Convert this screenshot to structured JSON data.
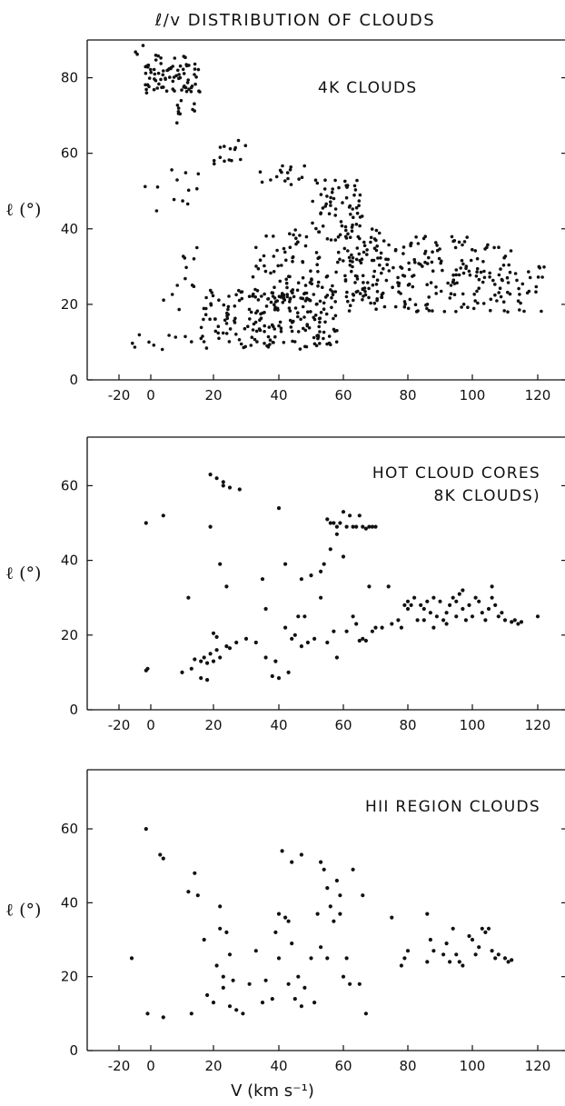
{
  "title": "ℓ/v DISTRIBUTION OF CLOUDS",
  "colors": {
    "ink": "#111111",
    "background": "#ffffff"
  },
  "chart_data": [
    {
      "type": "scatter",
      "label": "4K CLOUDS",
      "ylabel": "ℓ (°)",
      "xlabel": "",
      "xlim": [
        -30,
        130
      ],
      "ylim": [
        0,
        90
      ],
      "xticks": [
        -20,
        0,
        20,
        40,
        60,
        80,
        100,
        120
      ],
      "yticks": [
        0,
        20,
        40,
        60,
        80
      ],
      "grid": false,
      "clusters": [
        {
          "x": [
            -12,
            -2
          ],
          "y": [
            86,
            89
          ],
          "n": 3
        },
        {
          "x": [
            -4,
            16
          ],
          "y": [
            76,
            86
          ],
          "n": 80
        },
        {
          "x": [
            8,
            14
          ],
          "y": [
            68,
            74
          ],
          "n": 10
        },
        {
          "x": [
            20,
            30
          ],
          "y": [
            57,
            64
          ],
          "n": 14
        },
        {
          "x": [
            34,
            48
          ],
          "y": [
            51,
            57
          ],
          "n": 16
        },
        {
          "x": [
            50,
            66
          ],
          "y": [
            40,
            53
          ],
          "n": 55
        },
        {
          "x": [
            -4,
            16
          ],
          "y": [
            44,
            56
          ],
          "n": 12
        },
        {
          "x": [
            4,
            16
          ],
          "y": [
            18,
            36
          ],
          "n": 12
        },
        {
          "x": [
            16,
            58
          ],
          "y": [
            8,
            24
          ],
          "n": 200
        },
        {
          "x": [
            32,
            72
          ],
          "y": [
            20,
            40
          ],
          "n": 130
        },
        {
          "x": [
            60,
            112
          ],
          "y": [
            18,
            38
          ],
          "n": 210
        },
        {
          "x": [
            100,
            122
          ],
          "y": [
            18,
            30
          ],
          "n": 35
        },
        {
          "x": [
            -12,
            14
          ],
          "y": [
            8,
            12
          ],
          "n": 10
        }
      ]
    },
    {
      "type": "scatter",
      "label": "HOT CLOUD CORES",
      "label2": "8K CLOUDS)",
      "ylabel": "ℓ (°)",
      "xlabel": "",
      "xlim": [
        -30,
        130
      ],
      "ylim": [
        0,
        73
      ],
      "xticks": [
        -20,
        0,
        20,
        40,
        60,
        80,
        100,
        120
      ],
      "yticks": [
        0,
        20,
        40,
        60
      ],
      "grid": false,
      "points": [
        {
          "x": -3,
          "y": 50
        },
        {
          "x": 4,
          "y": 52
        },
        {
          "x": -3,
          "y": 10.5
        },
        {
          "x": -2,
          "y": 11
        },
        {
          "x": 12,
          "y": 30
        },
        {
          "x": 19,
          "y": 63
        },
        {
          "x": 21,
          "y": 62
        },
        {
          "x": 23,
          "y": 61
        },
        {
          "x": 23,
          "y": 60
        },
        {
          "x": 25,
          "y": 59.5
        },
        {
          "x": 28,
          "y": 59
        },
        {
          "x": 19,
          "y": 49
        },
        {
          "x": 22,
          "y": 39
        },
        {
          "x": 24,
          "y": 33
        },
        {
          "x": 20,
          "y": 20.5
        },
        {
          "x": 21,
          "y": 19.5
        },
        {
          "x": 10,
          "y": 10
        },
        {
          "x": 13,
          "y": 11
        },
        {
          "x": 14,
          "y": 13.5
        },
        {
          "x": 16,
          "y": 13
        },
        {
          "x": 17,
          "y": 14
        },
        {
          "x": 18,
          "y": 12.5
        },
        {
          "x": 19,
          "y": 15
        },
        {
          "x": 20,
          "y": 13
        },
        {
          "x": 21,
          "y": 16
        },
        {
          "x": 22,
          "y": 14
        },
        {
          "x": 16,
          "y": 8.5
        },
        {
          "x": 18,
          "y": 8
        },
        {
          "x": 24,
          "y": 17
        },
        {
          "x": 25,
          "y": 16.5
        },
        {
          "x": 27,
          "y": 18
        },
        {
          "x": 30,
          "y": 19
        },
        {
          "x": 33,
          "y": 18
        },
        {
          "x": 35,
          "y": 35
        },
        {
          "x": 36,
          "y": 27
        },
        {
          "x": 38,
          "y": 9
        },
        {
          "x": 40,
          "y": 8.5
        },
        {
          "x": 43,
          "y": 10
        },
        {
          "x": 36,
          "y": 14
        },
        {
          "x": 39,
          "y": 13
        },
        {
          "x": 40,
          "y": 54
        },
        {
          "x": 42,
          "y": 39
        },
        {
          "x": 42,
          "y": 22
        },
        {
          "x": 44,
          "y": 19
        },
        {
          "x": 45,
          "y": 20
        },
        {
          "x": 46,
          "y": 25
        },
        {
          "x": 47,
          "y": 35
        },
        {
          "x": 48,
          "y": 25
        },
        {
          "x": 47,
          "y": 17
        },
        {
          "x": 49,
          "y": 18
        },
        {
          "x": 50,
          "y": 36
        },
        {
          "x": 51,
          "y": 19
        },
        {
          "x": 53,
          "y": 30
        },
        {
          "x": 53,
          "y": 37
        },
        {
          "x": 54,
          "y": 39
        },
        {
          "x": 55,
          "y": 51
        },
        {
          "x": 56,
          "y": 50
        },
        {
          "x": 57,
          "y": 50
        },
        {
          "x": 58,
          "y": 49
        },
        {
          "x": 59,
          "y": 50
        },
        {
          "x": 60,
          "y": 53
        },
        {
          "x": 61,
          "y": 49
        },
        {
          "x": 62,
          "y": 52
        },
        {
          "x": 63,
          "y": 49
        },
        {
          "x": 64,
          "y": 49
        },
        {
          "x": 65,
          "y": 52
        },
        {
          "x": 66,
          "y": 49
        },
        {
          "x": 67,
          "y": 48.5
        },
        {
          "x": 68,
          "y": 49
        },
        {
          "x": 69,
          "y": 49
        },
        {
          "x": 70,
          "y": 49
        },
        {
          "x": 56,
          "y": 43
        },
        {
          "x": 58,
          "y": 47
        },
        {
          "x": 60,
          "y": 41
        },
        {
          "x": 55,
          "y": 18
        },
        {
          "x": 57,
          "y": 21
        },
        {
          "x": 58,
          "y": 14
        },
        {
          "x": 61,
          "y": 21
        },
        {
          "x": 63,
          "y": 25
        },
        {
          "x": 64,
          "y": 23
        },
        {
          "x": 65,
          "y": 18.5
        },
        {
          "x": 66,
          "y": 19
        },
        {
          "x": 67,
          "y": 18.5
        },
        {
          "x": 68,
          "y": 33
        },
        {
          "x": 69,
          "y": 21
        },
        {
          "x": 70,
          "y": 22
        },
        {
          "x": 72,
          "y": 22
        },
        {
          "x": 74,
          "y": 33
        },
        {
          "x": 75,
          "y": 23
        },
        {
          "x": 77,
          "y": 24
        },
        {
          "x": 78,
          "y": 22
        },
        {
          "x": 79,
          "y": 28
        },
        {
          "x": 80,
          "y": 29
        },
        {
          "x": 80,
          "y": 27
        },
        {
          "x": 81,
          "y": 28
        },
        {
          "x": 82,
          "y": 30
        },
        {
          "x": 83,
          "y": 24
        },
        {
          "x": 84,
          "y": 28
        },
        {
          "x": 85,
          "y": 27
        },
        {
          "x": 86,
          "y": 29
        },
        {
          "x": 87,
          "y": 26
        },
        {
          "x": 88,
          "y": 30
        },
        {
          "x": 88,
          "y": 22
        },
        {
          "x": 89,
          "y": 25
        },
        {
          "x": 90,
          "y": 29
        },
        {
          "x": 91,
          "y": 24
        },
        {
          "x": 92,
          "y": 26
        },
        {
          "x": 93,
          "y": 28
        },
        {
          "x": 94,
          "y": 30
        },
        {
          "x": 95,
          "y": 29
        },
        {
          "x": 95,
          "y": 25
        },
        {
          "x": 96,
          "y": 31
        },
        {
          "x": 97,
          "y": 27
        },
        {
          "x": 98,
          "y": 24
        },
        {
          "x": 99,
          "y": 28
        },
        {
          "x": 100,
          "y": 25
        },
        {
          "x": 101,
          "y": 30
        },
        {
          "x": 102,
          "y": 29
        },
        {
          "x": 103,
          "y": 26
        },
        {
          "x": 104,
          "y": 24
        },
        {
          "x": 105,
          "y": 27
        },
        {
          "x": 106,
          "y": 30
        },
        {
          "x": 106,
          "y": 33
        },
        {
          "x": 107,
          "y": 28
        },
        {
          "x": 108,
          "y": 25
        },
        {
          "x": 109,
          "y": 26
        },
        {
          "x": 110,
          "y": 24
        },
        {
          "x": 112,
          "y": 23.5
        },
        {
          "x": 113,
          "y": 24
        },
        {
          "x": 114,
          "y": 23
        },
        {
          "x": 115,
          "y": 23.5
        },
        {
          "x": 120,
          "y": 25
        },
        {
          "x": 85,
          "y": 24
        },
        {
          "x": 92,
          "y": 23
        },
        {
          "x": 97,
          "y": 32
        }
      ]
    },
    {
      "type": "scatter",
      "label": "HII REGION CLOUDS",
      "ylabel": "ℓ (°)",
      "xlabel": "V (km s⁻¹)",
      "xlim": [
        -30,
        130
      ],
      "ylim": [
        0,
        76
      ],
      "xticks": [
        -20,
        0,
        20,
        40,
        60,
        80,
        100,
        120
      ],
      "yticks": [
        0,
        20,
        40,
        60
      ],
      "grid": false,
      "points": [
        {
          "x": -12,
          "y": 25
        },
        {
          "x": -3,
          "y": 60
        },
        {
          "x": -2,
          "y": 10
        },
        {
          "x": 3,
          "y": 53
        },
        {
          "x": 4,
          "y": 52
        },
        {
          "x": 4,
          "y": 9
        },
        {
          "x": 12,
          "y": 43
        },
        {
          "x": 13,
          "y": 10
        },
        {
          "x": 14,
          "y": 48
        },
        {
          "x": 15,
          "y": 42
        },
        {
          "x": 17,
          "y": 30
        },
        {
          "x": 18,
          "y": 15
        },
        {
          "x": 20,
          "y": 13
        },
        {
          "x": 21,
          "y": 23
        },
        {
          "x": 22,
          "y": 39
        },
        {
          "x": 22,
          "y": 33
        },
        {
          "x": 23,
          "y": 20
        },
        {
          "x": 23,
          "y": 17
        },
        {
          "x": 24,
          "y": 32
        },
        {
          "x": 25,
          "y": 26
        },
        {
          "x": 25,
          "y": 12
        },
        {
          "x": 26,
          "y": 19
        },
        {
          "x": 27,
          "y": 11
        },
        {
          "x": 29,
          "y": 10
        },
        {
          "x": 31,
          "y": 18
        },
        {
          "x": 33,
          "y": 27
        },
        {
          "x": 35,
          "y": 13
        },
        {
          "x": 36,
          "y": 19
        },
        {
          "x": 38,
          "y": 14
        },
        {
          "x": 39,
          "y": 32
        },
        {
          "x": 40,
          "y": 37
        },
        {
          "x": 40,
          "y": 25
        },
        {
          "x": 41,
          "y": 54
        },
        {
          "x": 42,
          "y": 36
        },
        {
          "x": 43,
          "y": 35
        },
        {
          "x": 43,
          "y": 18
        },
        {
          "x": 44,
          "y": 51
        },
        {
          "x": 44,
          "y": 29
        },
        {
          "x": 45,
          "y": 14
        },
        {
          "x": 46,
          "y": 20
        },
        {
          "x": 47,
          "y": 53
        },
        {
          "x": 47,
          "y": 12
        },
        {
          "x": 48,
          "y": 17
        },
        {
          "x": 50,
          "y": 25
        },
        {
          "x": 51,
          "y": 13
        },
        {
          "x": 52,
          "y": 37
        },
        {
          "x": 53,
          "y": 51
        },
        {
          "x": 53,
          "y": 28
        },
        {
          "x": 54,
          "y": 49
        },
        {
          "x": 55,
          "y": 44
        },
        {
          "x": 55,
          "y": 25
        },
        {
          "x": 56,
          "y": 39
        },
        {
          "x": 57,
          "y": 35
        },
        {
          "x": 58,
          "y": 46
        },
        {
          "x": 59,
          "y": 42
        },
        {
          "x": 59,
          "y": 37
        },
        {
          "x": 60,
          "y": 20
        },
        {
          "x": 61,
          "y": 25
        },
        {
          "x": 62,
          "y": 18
        },
        {
          "x": 63,
          "y": 49
        },
        {
          "x": 65,
          "y": 18
        },
        {
          "x": 66,
          "y": 42
        },
        {
          "x": 67,
          "y": 10
        },
        {
          "x": 75,
          "y": 36
        },
        {
          "x": 78,
          "y": 23
        },
        {
          "x": 79,
          "y": 25
        },
        {
          "x": 80,
          "y": 27
        },
        {
          "x": 86,
          "y": 37
        },
        {
          "x": 86,
          "y": 24
        },
        {
          "x": 87,
          "y": 30
        },
        {
          "x": 88,
          "y": 27
        },
        {
          "x": 91,
          "y": 26
        },
        {
          "x": 92,
          "y": 29
        },
        {
          "x": 93,
          "y": 24
        },
        {
          "x": 94,
          "y": 33
        },
        {
          "x": 95,
          "y": 26
        },
        {
          "x": 96,
          "y": 24
        },
        {
          "x": 97,
          "y": 23
        },
        {
          "x": 99,
          "y": 31
        },
        {
          "x": 100,
          "y": 30
        },
        {
          "x": 101,
          "y": 26
        },
        {
          "x": 102,
          "y": 28
        },
        {
          "x": 103,
          "y": 33
        },
        {
          "x": 104,
          "y": 32
        },
        {
          "x": 105,
          "y": 33
        },
        {
          "x": 106,
          "y": 27
        },
        {
          "x": 107,
          "y": 25
        },
        {
          "x": 108,
          "y": 26
        },
        {
          "x": 110,
          "y": 25
        },
        {
          "x": 111,
          "y": 24
        },
        {
          "x": 112,
          "y": 24.5
        }
      ]
    }
  ]
}
